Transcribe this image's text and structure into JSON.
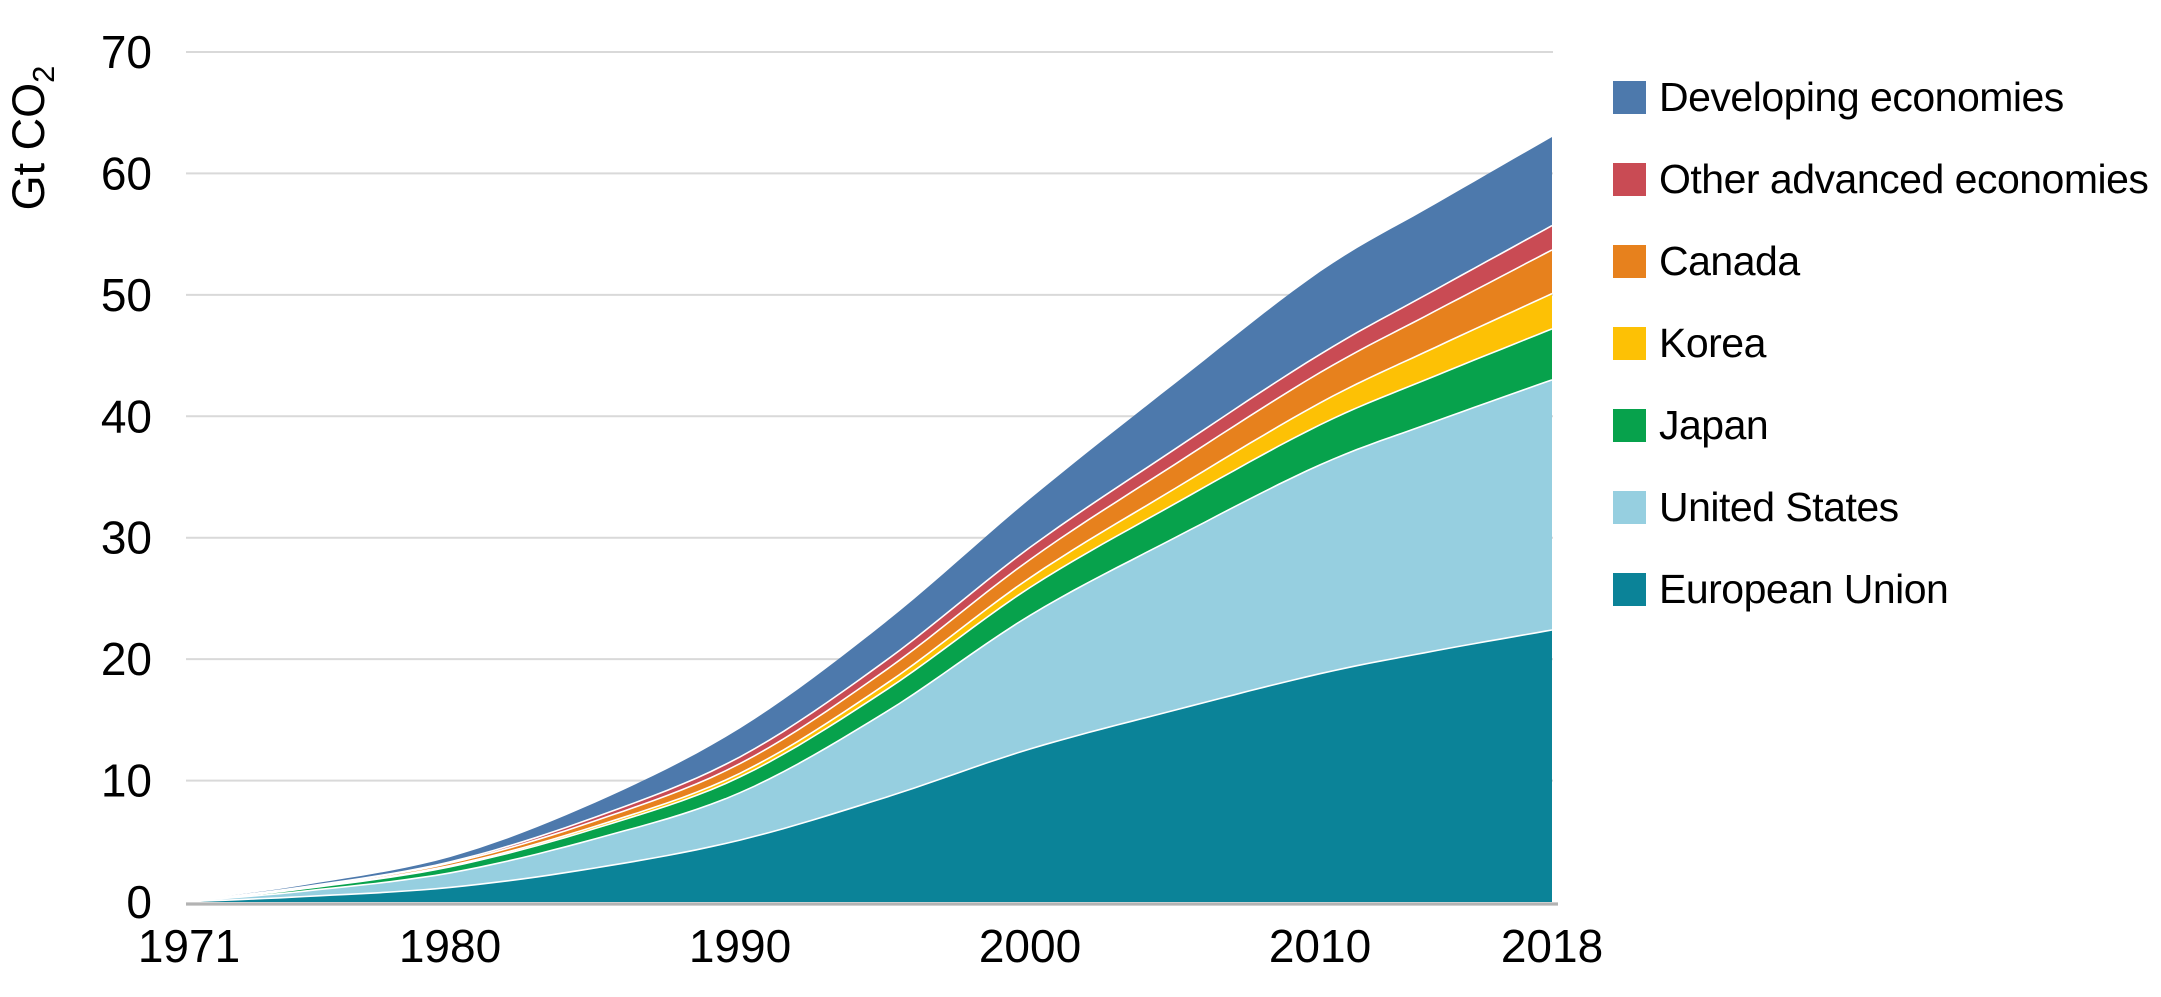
{
  "chart_data": {
    "type": "area",
    "stacked": true,
    "title": "",
    "ylabel": "Gt CO2",
    "ylabel_main": "Gt CO",
    "ylabel_sub": "2",
    "x": [
      1971,
      1975,
      1980,
      1985,
      1990,
      1995,
      2000,
      2005,
      2010,
      2014,
      2018
    ],
    "xticks": [
      1971,
      1980,
      1990,
      2000,
      2010,
      2018
    ],
    "yticks": [
      0,
      10,
      20,
      30,
      40,
      50,
      60,
      70
    ],
    "ylim": [
      0,
      70
    ],
    "xlim": [
      1971,
      2018
    ],
    "grid": true,
    "legend_position": "right",
    "grid_color": "#d9d9d9",
    "axis_line_color": "#b3b3b3",
    "text_color": "#000000",
    "series": [
      {
        "id": "european-union",
        "name": "European Union",
        "color": "#0b8398",
        "values": [
          0.03,
          0.45,
          1.2,
          2.8,
          5.1,
          8.6,
          12.6,
          15.8,
          18.8,
          20.7,
          22.4
        ]
      },
      {
        "id": "united-states",
        "name": "United States",
        "color": "#96cfe0",
        "values": [
          0.03,
          0.45,
          1.2,
          2.4,
          3.9,
          7.0,
          11.0,
          14.2,
          17.2,
          18.9,
          20.6
        ]
      },
      {
        "id": "japan",
        "name": "Japan",
        "color": "#07a24c",
        "values": [
          0.02,
          0.2,
          0.5,
          0.85,
          1.3,
          1.8,
          2.3,
          2.8,
          3.3,
          3.75,
          4.2
        ]
      },
      {
        "id": "korea",
        "name": "Korea",
        "color": "#fdc105",
        "values": [
          0.0,
          0.04,
          0.1,
          0.18,
          0.3,
          0.5,
          0.8,
          1.25,
          1.8,
          2.35,
          2.9
        ]
      },
      {
        "id": "canada",
        "name": "Canada",
        "color": "#e7811d",
        "values": [
          0.01,
          0.08,
          0.2,
          0.45,
          0.8,
          1.15,
          1.5,
          2.0,
          2.5,
          3.0,
          3.6
        ]
      },
      {
        "id": "other-advanced-economies",
        "name": "Other advanced economies",
        "color": "#c94b54",
        "values": [
          0.0,
          0.04,
          0.1,
          0.3,
          0.55,
          0.78,
          1.0,
          1.25,
          1.5,
          1.75,
          2.0
        ]
      },
      {
        "id": "developing-economies",
        "name": "Developing economies",
        "color": "#4d79ac",
        "values": [
          0.01,
          0.14,
          0.4,
          1.2,
          2.35,
          3.17,
          4.0,
          5.4,
          6.8,
          7.05,
          7.3
        ]
      }
    ]
  }
}
